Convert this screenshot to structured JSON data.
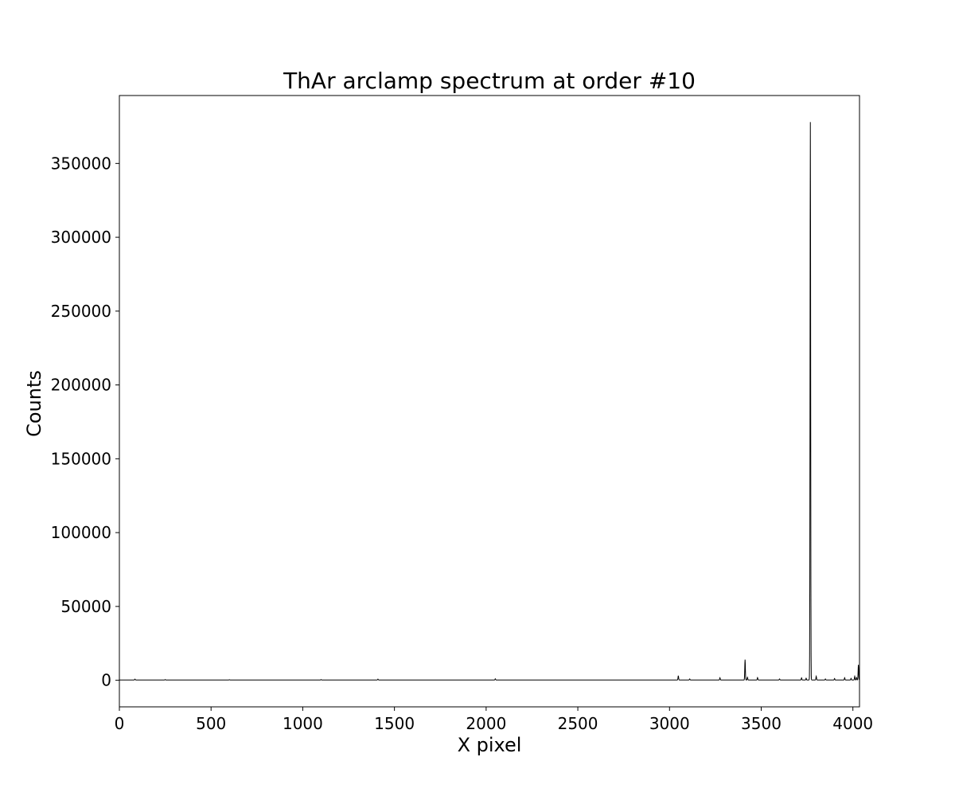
{
  "chart_data": {
    "type": "line",
    "title": "ThAr arclamp spectrum at order #10",
    "xlabel": "X pixel",
    "ylabel": "Counts",
    "xlim": [
      0,
      4036
    ],
    "ylim": [
      -18000,
      396000
    ],
    "xticks": [
      0,
      500,
      1000,
      1500,
      2000,
      2500,
      3000,
      3500,
      4000
    ],
    "yticks": [
      0,
      50000,
      100000,
      150000,
      200000,
      250000,
      300000,
      350000
    ],
    "grid": false,
    "line_color": "#000000",
    "baseline": 200,
    "peaks": [
      {
        "x": 85,
        "y": 800
      },
      {
        "x": 250,
        "y": 500
      },
      {
        "x": 600,
        "y": 400
      },
      {
        "x": 1100,
        "y": 500
      },
      {
        "x": 1410,
        "y": 800
      },
      {
        "x": 2050,
        "y": 1000
      },
      {
        "x": 3048,
        "y": 3100
      },
      {
        "x": 3110,
        "y": 900
      },
      {
        "x": 3275,
        "y": 1700
      },
      {
        "x": 3412,
        "y": 14000
      },
      {
        "x": 3425,
        "y": 2000
      },
      {
        "x": 3480,
        "y": 1800
      },
      {
        "x": 3600,
        "y": 900
      },
      {
        "x": 3720,
        "y": 1600
      },
      {
        "x": 3745,
        "y": 1400
      },
      {
        "x": 3768,
        "y": 378000
      },
      {
        "x": 3800,
        "y": 2700
      },
      {
        "x": 3850,
        "y": 900
      },
      {
        "x": 3900,
        "y": 1200
      },
      {
        "x": 3955,
        "y": 1700
      },
      {
        "x": 3990,
        "y": 1300
      },
      {
        "x": 4010,
        "y": 2700
      },
      {
        "x": 4020,
        "y": 1800
      },
      {
        "x": 4030,
        "y": 10500
      }
    ]
  }
}
